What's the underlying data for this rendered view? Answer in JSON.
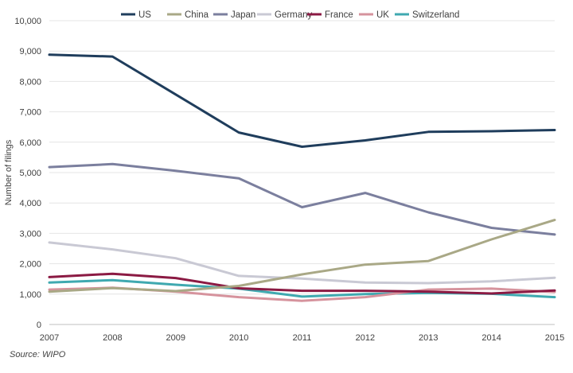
{
  "chart_data": {
    "type": "line",
    "x": [
      "2007",
      "2008",
      "2009",
      "2010",
      "2011",
      "2012",
      "2013",
      "2014",
      "2015"
    ],
    "ylabel": "Number of filings",
    "ylim": [
      0,
      10000
    ],
    "yticks": [
      "0",
      "1,000",
      "2,000",
      "3,000",
      "4,000",
      "5,000",
      "6,000",
      "7,000",
      "8,000",
      "9,000",
      "10,000"
    ],
    "ytick_values": [
      0,
      1000,
      2000,
      3000,
      4000,
      5000,
      6000,
      7000,
      8000,
      9000,
      10000
    ],
    "grid": "horizontal",
    "legend_position": "top-center",
    "series": [
      {
        "name": "US",
        "color": "#1f3d5c",
        "values": [
          8880,
          8820,
          7570,
          6320,
          5850,
          6060,
          6340,
          6360,
          6400
        ]
      },
      {
        "name": "China",
        "color": "#a9a886",
        "values": [
          1080,
          1200,
          1100,
          1270,
          1650,
          1970,
          2090,
          2800,
          3440
        ]
      },
      {
        "name": "Japan",
        "color": "#7b7f9e",
        "values": [
          5180,
          5280,
          5060,
          4810,
          3860,
          4330,
          3690,
          3180,
          2960
        ]
      },
      {
        "name": "Germany",
        "color": "#c9c9d4",
        "values": [
          2700,
          2470,
          2180,
          1600,
          1510,
          1380,
          1360,
          1420,
          1540
        ]
      },
      {
        "name": "France",
        "color": "#8b1a43",
        "values": [
          1560,
          1670,
          1530,
          1190,
          1110,
          1110,
          1080,
          1020,
          1120
        ]
      },
      {
        "name": "UK",
        "color": "#d6939d",
        "values": [
          1150,
          1210,
          1080,
          900,
          780,
          900,
          1150,
          1180,
          1070
        ]
      },
      {
        "name": "Switzerland",
        "color": "#3fa9b0",
        "values": [
          1380,
          1460,
          1310,
          1180,
          920,
          1000,
          1040,
          1010,
          900
        ]
      }
    ]
  },
  "source": "Source: WIPO"
}
